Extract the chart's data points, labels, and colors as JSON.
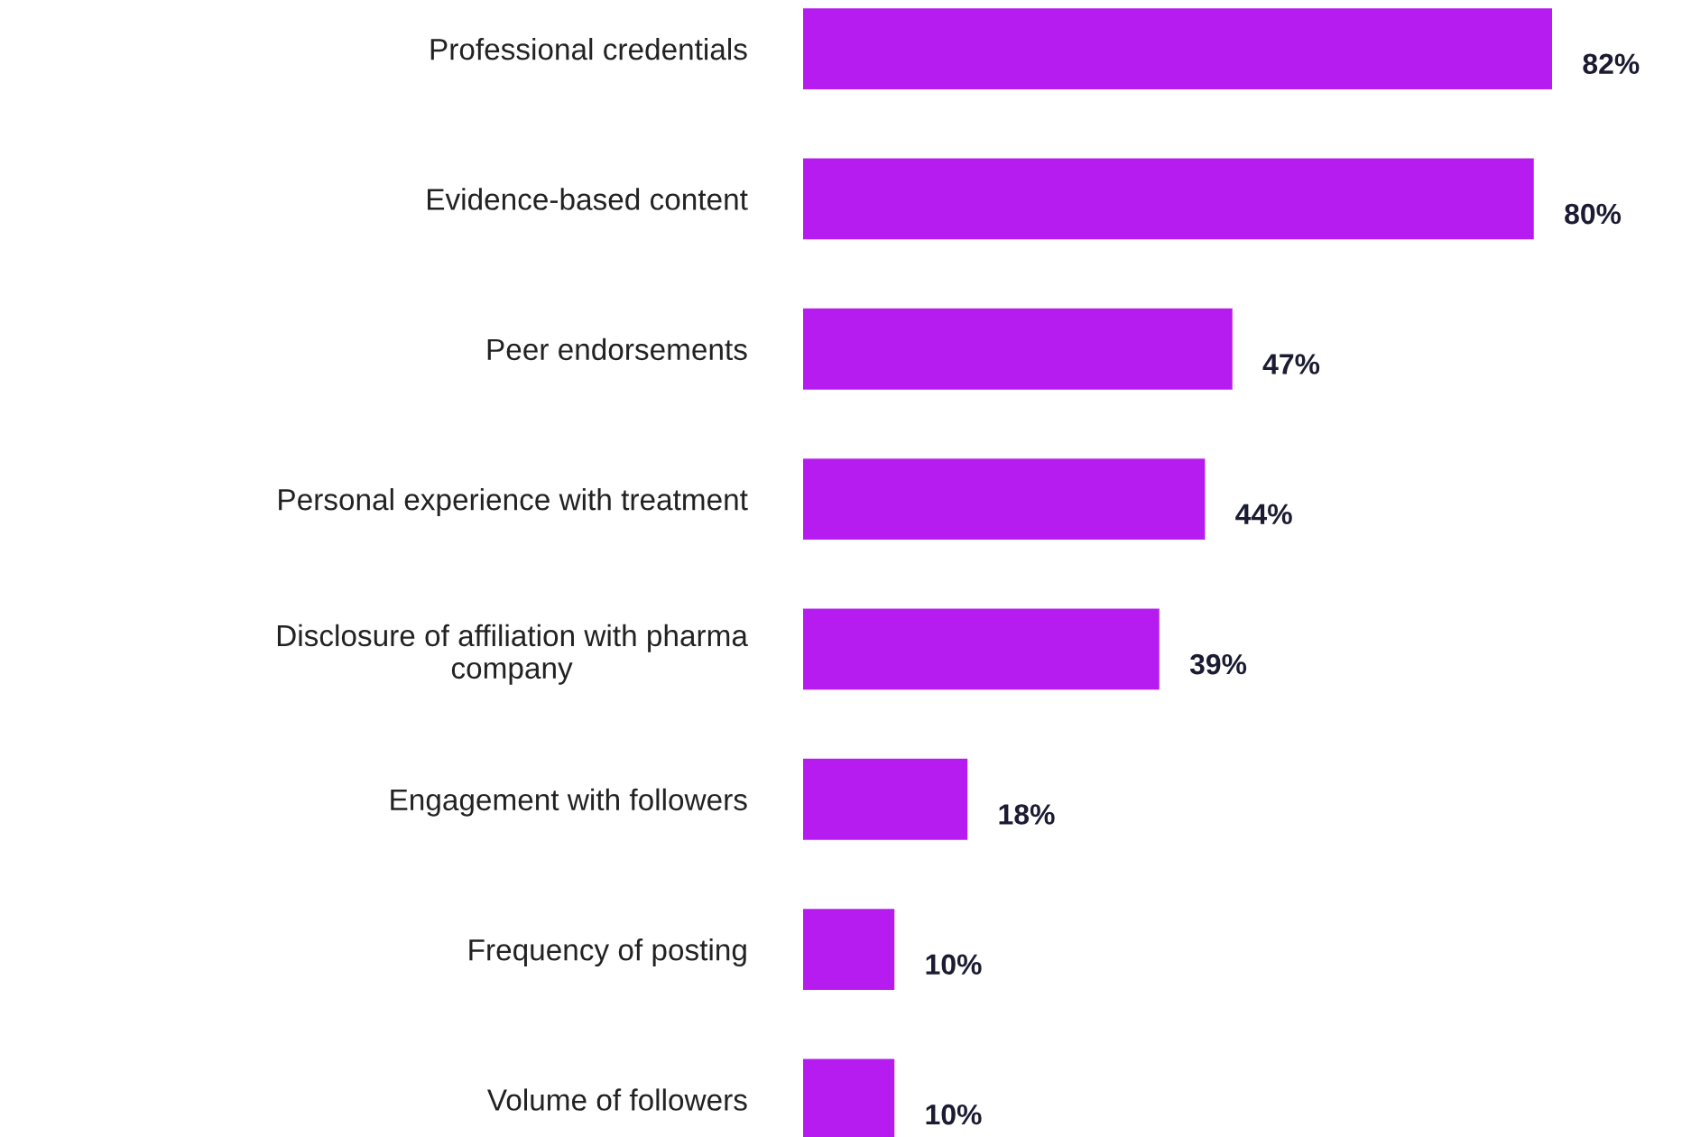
{
  "chart_data": {
    "type": "bar",
    "orientation": "horizontal",
    "categories": [
      "Professional credentials",
      "Evidence-based content",
      "Peer endorsements",
      "Personal experience with treatment",
      "Disclosure of affiliation with pharma company",
      "Engagement with followers",
      "Frequency of posting",
      "Volume of followers"
    ],
    "values": [
      82,
      80,
      47,
      44,
      39,
      18,
      10,
      10
    ],
    "value_labels": [
      "82%",
      "80%",
      "47%",
      "44%",
      "39%",
      "18%",
      "10%",
      "10%"
    ],
    "color": "#b61cf0",
    "grid": false,
    "legend": false
  }
}
